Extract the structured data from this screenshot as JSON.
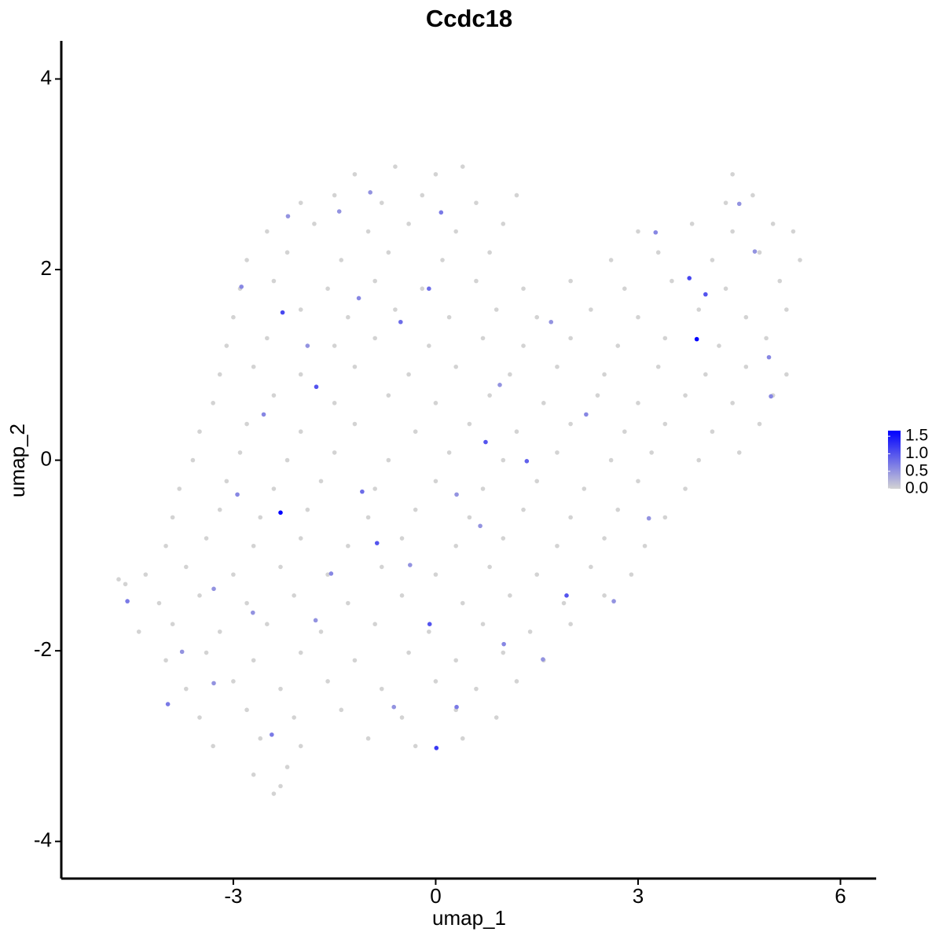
{
  "chart_data": {
    "type": "scatter",
    "title": "Ccdc18",
    "x_label": "umap_1",
    "y_label": "umap_2",
    "xlim": [
      -5.55,
      6.53
    ],
    "ylim": [
      -4.39,
      4.4
    ],
    "xticks": [
      -3,
      0,
      3,
      6
    ],
    "yticks": [
      -4,
      -2,
      0,
      2,
      4
    ],
    "color_low": "#d3d3d3",
    "color_high": "#0000ff",
    "color_lim": [
      0,
      1.66
    ],
    "color_ticks": [
      {
        "value": 0,
        "label": "0.0"
      },
      {
        "value": 0.5,
        "label": "0.5"
      },
      {
        "value": 1,
        "label": "1.0"
      },
      1.5
    ],
    "x": [
      -1.2,
      -0.6,
      0.0,
      0.4,
      4.4,
      -2.0,
      -1.5,
      -0.8,
      -0.2,
      0.6,
      1.2,
      4.3,
      4.7,
      -2.5,
      -1.8,
      -1.0,
      -0.4,
      0.3,
      1.0,
      3.0,
      3.8,
      4.4,
      5.0,
      5.3,
      -2.8,
      -2.2,
      -1.4,
      -0.7,
      0.1,
      0.8,
      2.6,
      3.3,
      4.1,
      4.8,
      5.4,
      -2.9,
      -2.4,
      -1.6,
      -0.9,
      -0.2,
      0.6,
      1.3,
      2.0,
      2.8,
      3.5,
      4.3,
      5.1,
      -3.0,
      -2.0,
      -1.3,
      -0.6,
      0.2,
      0.9,
      1.5,
      2.3,
      3.0,
      3.9,
      4.6,
      5.2,
      -3.1,
      -2.5,
      -1.5,
      -0.9,
      -0.1,
      0.7,
      1.3,
      2.0,
      2.7,
      3.4,
      4.2,
      4.9,
      -3.2,
      -2.7,
      -2.0,
      -1.2,
      -0.4,
      0.3,
      1.1,
      1.8,
      2.5,
      3.3,
      4.0,
      4.6,
      5.2,
      -3.3,
      -2.4,
      -1.5,
      -0.7,
      0.0,
      0.8,
      1.6,
      2.4,
      3.0,
      3.7,
      4.4,
      5.0,
      -3.5,
      -2.8,
      -2.0,
      -1.2,
      -0.3,
      0.5,
      1.2,
      2.0,
      2.8,
      3.4,
      4.1,
      4.8,
      -3.6,
      -2.9,
      -2.2,
      -1.5,
      -0.7,
      0.2,
      1.0,
      1.8,
      2.6,
      3.2,
      3.9,
      4.5,
      -3.8,
      -3.1,
      -2.4,
      -1.7,
      -0.9,
      0.0,
      0.7,
      1.5,
      2.2,
      3.0,
      3.7,
      -3.9,
      -3.2,
      -2.6,
      -1.9,
      -1.0,
      -0.3,
      0.5,
      1.3,
      2.0,
      2.7,
      3.4,
      -4.0,
      -3.4,
      -2.7,
      -2.0,
      -1.3,
      -0.5,
      0.3,
      1.0,
      1.8,
      2.5,
      3.1,
      -4.3,
      -3.7,
      -3.0,
      -2.3,
      -1.6,
      -0.8,
      0.0,
      0.8,
      1.5,
      2.3,
      2.9,
      -4.1,
      -3.5,
      -2.8,
      -2.1,
      -1.3,
      -0.5,
      0.4,
      1.1,
      1.9,
      2.5,
      -4.4,
      -3.9,
      -3.2,
      -2.5,
      -1.7,
      -0.9,
      -0.1,
      0.7,
      1.4,
      2.0,
      -4.0,
      -3.4,
      -2.7,
      -2.0,
      -1.2,
      -0.4,
      0.3,
      1.0,
      1.6,
      -3.7,
      -3.0,
      -2.3,
      -1.6,
      -0.8,
      0.0,
      0.6,
      1.2,
      -3.5,
      -2.8,
      -2.1,
      -1.4,
      -0.5,
      0.3,
      0.9,
      -3.3,
      -2.6,
      -2.0,
      -1.0,
      -0.3,
      0.4,
      -2.7,
      -2.2,
      -2.4,
      -2.3,
      -4.6,
      -4.7,
      -2.27,
      -1.77,
      -2.3,
      3.87,
      0.01,
      -0.87,
      3.76,
      4.0,
      1.94,
      -0.09,
      0.74,
      1.35,
      -0.1,
      0.08,
      -0.52,
      -4.57,
      -3.97,
      -2.43,
      -1.09,
      0.31,
      -1.14,
      -2.88,
      -2.55,
      -2.94,
      -1.55,
      1.01,
      3.26,
      4.94,
      4.97,
      2.23,
      3.16,
      -3.29,
      -3.76,
      -1.78,
      -0.38,
      0.66,
      1.59,
      -1.43,
      -2.19,
      -0.97,
      -1.9,
      4.5,
      4.73,
      1.71,
      0.31,
      -0.62,
      -3.29,
      -2.71,
      0.95,
      2.64
    ],
    "y": [
      3.0,
      3.08,
      3.0,
      3.08,
      3.0,
      2.7,
      2.78,
      2.7,
      2.78,
      2.7,
      2.78,
      2.7,
      2.78,
      2.4,
      2.48,
      2.4,
      2.48,
      2.4,
      2.48,
      2.4,
      2.48,
      2.4,
      2.48,
      2.4,
      2.1,
      2.18,
      2.1,
      2.18,
      2.1,
      2.18,
      2.1,
      2.18,
      2.1,
      2.18,
      2.1,
      1.8,
      1.88,
      1.8,
      1.88,
      1.8,
      1.88,
      1.8,
      1.88,
      1.8,
      1.88,
      1.8,
      1.88,
      1.5,
      1.58,
      1.5,
      1.58,
      1.5,
      1.58,
      1.5,
      1.58,
      1.5,
      1.58,
      1.5,
      1.58,
      1.2,
      1.28,
      1.2,
      1.28,
      1.2,
      1.28,
      1.2,
      1.28,
      1.2,
      1.28,
      1.2,
      1.28,
      0.9,
      0.98,
      0.9,
      0.98,
      0.9,
      0.98,
      0.9,
      0.98,
      0.9,
      0.98,
      0.9,
      0.98,
      0.9,
      0.6,
      0.68,
      0.6,
      0.68,
      0.6,
      0.68,
      0.6,
      0.68,
      0.6,
      0.68,
      0.6,
      0.68,
      0.3,
      0.38,
      0.3,
      0.38,
      0.3,
      0.38,
      0.3,
      0.38,
      0.3,
      0.38,
      0.3,
      0.38,
      0.0,
      0.08,
      0.0,
      0.08,
      0.0,
      0.08,
      0.0,
      0.08,
      0.0,
      0.08,
      0.0,
      0.08,
      -0.3,
      -0.22,
      -0.3,
      -0.22,
      -0.3,
      -0.22,
      -0.3,
      -0.22,
      -0.3,
      -0.22,
      -0.3,
      -0.6,
      -0.52,
      -0.6,
      -0.52,
      -0.6,
      -0.52,
      -0.6,
      -0.52,
      -0.6,
      -0.52,
      -0.6,
      -0.9,
      -0.82,
      -0.9,
      -0.82,
      -0.9,
      -0.82,
      -0.9,
      -0.82,
      -0.9,
      -0.82,
      -0.9,
      -1.2,
      -1.12,
      -1.2,
      -1.12,
      -1.2,
      -1.12,
      -1.2,
      -1.12,
      -1.2,
      -1.12,
      -1.2,
      -1.5,
      -1.42,
      -1.5,
      -1.42,
      -1.5,
      -1.42,
      -1.5,
      -1.42,
      -1.5,
      -1.42,
      -1.8,
      -1.72,
      -1.8,
      -1.72,
      -1.8,
      -1.72,
      -1.8,
      -1.72,
      -1.8,
      -1.72,
      -2.1,
      -2.02,
      -2.1,
      -2.02,
      -2.1,
      -2.02,
      -2.1,
      -2.02,
      -2.1,
      -2.4,
      -2.32,
      -2.4,
      -2.32,
      -2.4,
      -2.32,
      -2.4,
      -2.32,
      -2.7,
      -2.62,
      -2.7,
      -2.62,
      -2.7,
      -2.62,
      -2.7,
      -3.0,
      -2.92,
      -3.0,
      -2.92,
      -3.0,
      -2.92,
      -3.3,
      -3.22,
      -3.5,
      -3.42,
      -1.3,
      -1.25,
      1.55,
      0.77,
      -0.55,
      1.27,
      -3.02,
      -0.87,
      1.91,
      1.74,
      -1.42,
      -1.72,
      0.19,
      -0.01,
      1.8,
      2.6,
      1.45,
      -1.48,
      -2.56,
      -2.88,
      -0.33,
      -2.59,
      1.7,
      1.82,
      0.48,
      -0.36,
      -1.19,
      -1.93,
      2.39,
      1.08,
      0.67,
      0.48,
      -0.61,
      -1.35,
      -2.01,
      -1.68,
      -1.1,
      -0.69,
      -2.09,
      2.61,
      2.56,
      2.81,
      1.2,
      2.69,
      2.19,
      1.45,
      -0.36,
      -2.59,
      -2.34,
      -1.6,
      0.79,
      -1.48
    ],
    "values": [
      0,
      0,
      0,
      0,
      0,
      0,
      0,
      0,
      0,
      0,
      0,
      0,
      0,
      0,
      0,
      0,
      0,
      0,
      0,
      0,
      0,
      0,
      0,
      0,
      0,
      0,
      0,
      0,
      0,
      0,
      0,
      0,
      0,
      0,
      0,
      0,
      0,
      0,
      0,
      0,
      0,
      0,
      0,
      0,
      0,
      0,
      0,
      0,
      0,
      0,
      0,
      0,
      0,
      0,
      0,
      0,
      0,
      0,
      0,
      0,
      0,
      0,
      0,
      0,
      0,
      0,
      0,
      0,
      0,
      0,
      0,
      0,
      0,
      0,
      0,
      0,
      0,
      0,
      0,
      0,
      0,
      0,
      0,
      0,
      0,
      0,
      0,
      0,
      0,
      0,
      0,
      0,
      0,
      0,
      0,
      0,
      0,
      0,
      0,
      0,
      0,
      0,
      0,
      0,
      0,
      0,
      0,
      0,
      0,
      0,
      0,
      0,
      0,
      0,
      0,
      0,
      0,
      0,
      0,
      0,
      0,
      0,
      0,
      0,
      0,
      0,
      0,
      0,
      0,
      0,
      0,
      0,
      0,
      0,
      0,
      0,
      0,
      0,
      0,
      0,
      0,
      0,
      0,
      0,
      0,
      0,
      0,
      0,
      0,
      0,
      0,
      0,
      0,
      0,
      0,
      0,
      0,
      0,
      0,
      0,
      0,
      0,
      0,
      0,
      0,
      0,
      0,
      0,
      0,
      0,
      0,
      0,
      0,
      0,
      0,
      0,
      0,
      0,
      0,
      0,
      0,
      0,
      0,
      0,
      0,
      0,
      0,
      0,
      0,
      0,
      0,
      0,
      0,
      0,
      0,
      0,
      0,
      0,
      0,
      0,
      0,
      0,
      0,
      0,
      0,
      0,
      0,
      0,
      0,
      0,
      0,
      0,
      0,
      0,
      0,
      0,
      0,
      0,
      0,
      0,
      1.1,
      1.0,
      1.65,
      1.65,
      1.2,
      1.0,
      1.1,
      1.0,
      1.0,
      1.0,
      1.0,
      0.9,
      0.8,
      0.7,
      0.8,
      0.7,
      0.7,
      0.7,
      0.8,
      0.7,
      0.6,
      0.6,
      0.6,
      0.6,
      0.6,
      0.6,
      0.6,
      0.6,
      0.6,
      0.6,
      0.5,
      0.5,
      0.5,
      0.5,
      0.5,
      0.5,
      0.5,
      0.5,
      0.5,
      0.5,
      0.5,
      0.5,
      0.5,
      0.5,
      0.5,
      0.5,
      0.5,
      0.5,
      0.5,
      0.5
    ]
  }
}
